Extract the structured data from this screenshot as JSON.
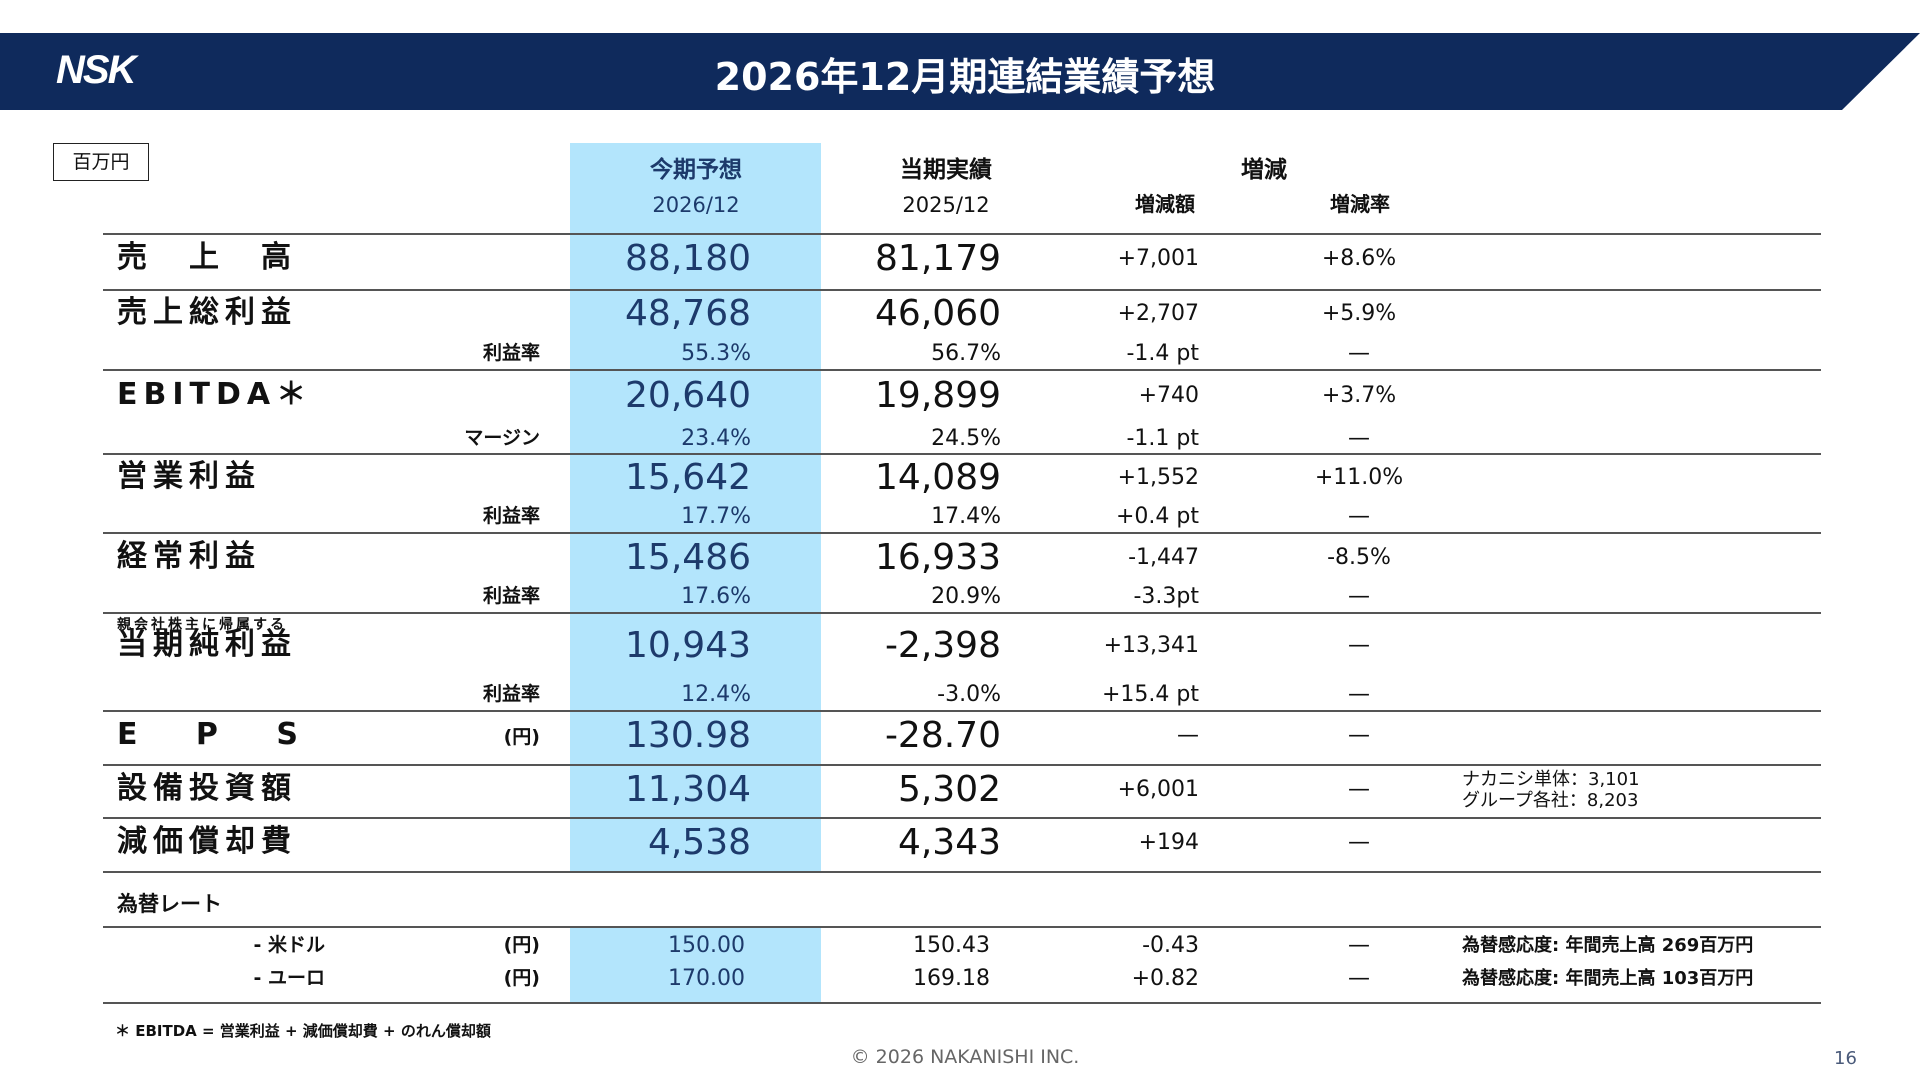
{
  "header": {
    "logo": "NSK",
    "title": "2026年12月期連結業績予想",
    "brand_color": "#0f2a5c",
    "highlight_color": "#b3e5fc"
  },
  "unit": "百万円",
  "columns": {
    "forecast": "今期予想",
    "forecast_period": "2026/12",
    "actual": "当期実績",
    "actual_period": "2025/12",
    "change": "増減",
    "change_amount": "増減額",
    "change_rate": "増減率"
  },
  "rows": [
    {
      "label": "売　上　高",
      "forecast": "88,180",
      "actual": "81,179",
      "diff": "+7,001",
      "rate": "+8.6%"
    },
    {
      "label": "売上総利益",
      "forecast": "48,768",
      "actual": "46,060",
      "diff": "+2,707",
      "rate": "+5.9%",
      "sub_label": "利益率",
      "sub_forecast": "55.3%",
      "sub_actual": "56.7%",
      "sub_diff": "-1.4 pt",
      "sub_rate": "—"
    },
    {
      "label": "EBITDA＊",
      "forecast": "20,640",
      "actual": "19,899",
      "diff": "+740",
      "rate": "+3.7%",
      "sub_label": "マージン",
      "sub_forecast": "23.4%",
      "sub_actual": "24.5%",
      "sub_diff": "-1.1 pt",
      "sub_rate": "—"
    },
    {
      "label": "営業利益",
      "forecast": "15,642",
      "actual": "14,089",
      "diff": "+1,552",
      "rate": "+11.0%",
      "sub_label": "利益率",
      "sub_forecast": "17.7%",
      "sub_actual": "17.4%",
      "sub_diff": "+0.4 pt",
      "sub_rate": "—"
    },
    {
      "label": "経常利益",
      "forecast": "15,486",
      "actual": "16,933",
      "diff": "-1,447",
      "rate": "-8.5%",
      "sub_label": "利益率",
      "sub_forecast": "17.6%",
      "sub_actual": "20.9%",
      "sub_diff": "-3.3pt",
      "sub_rate": "—"
    },
    {
      "pre_label": "親会社株主に帰属する",
      "label": "当期純利益",
      "forecast": "10,943",
      "actual": "-2,398",
      "diff": "+13,341",
      "rate": "—",
      "sub_label": "利益率",
      "sub_forecast": "12.4%",
      "sub_actual": "-3.0%",
      "sub_diff": "+15.4 pt",
      "sub_rate": "—"
    },
    {
      "label": "E　 P　 S",
      "unit_label": "(円)",
      "forecast": "130.98",
      "actual": "-28.70",
      "diff": "—",
      "rate": "—"
    },
    {
      "label": "設備投資額",
      "forecast": "11,304",
      "actual": "5,302",
      "diff": "+6,001",
      "rate": "—",
      "note": [
        "ナカニシ単体：3,101",
        "グループ各社：8,203"
      ]
    },
    {
      "label": "減価償却費",
      "forecast": "4,538",
      "actual": "4,343",
      "diff": "+194",
      "rate": "—"
    }
  ],
  "fx": {
    "title": "為替レート",
    "rows": [
      {
        "label": "- 米ドル",
        "unit": "(円)",
        "forecast": "150.00",
        "actual": "150.43",
        "diff": "-0.43",
        "rate": "—",
        "note": "為替感応度:  年間売上高 269百万円"
      },
      {
        "label": "- ユーロ",
        "unit": "(円)",
        "forecast": "170.00",
        "actual": "169.18",
        "diff": "+0.82",
        "rate": "—",
        "note": "為替感応度:  年間売上高 103百万円"
      }
    ]
  },
  "footnote": "＊ EBITDA = 営業利益 + 減価償却費 + のれん償却額",
  "copyright": "© 2026 NAKANISHI INC.",
  "page_number": "16"
}
